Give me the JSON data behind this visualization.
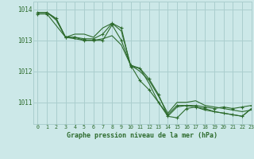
{
  "title": "Graphe pression niveau de la mer (hPa)",
  "background_color": "#cce8e8",
  "grid_color": "#aacece",
  "line_color": "#2d6b2d",
  "xlim": [
    -0.5,
    23
  ],
  "ylim": [
    1010.3,
    1014.25
  ],
  "yticks": [
    1011,
    1012,
    1013,
    1014
  ],
  "xticks": [
    0,
    1,
    2,
    3,
    4,
    5,
    6,
    7,
    8,
    9,
    10,
    11,
    12,
    13,
    14,
    15,
    16,
    17,
    18,
    19,
    20,
    21,
    22,
    23
  ],
  "series": [
    {
      "x": [
        0,
        1,
        2,
        3,
        4,
        5,
        6,
        7,
        8,
        9,
        10,
        11,
        12,
        13,
        14,
        15,
        16,
        17,
        18,
        19,
        20,
        21,
        22,
        23
      ],
      "y": [
        1013.9,
        1013.9,
        1013.65,
        1013.1,
        1013.05,
        1013.0,
        1013.0,
        1013.05,
        1013.15,
        1012.85,
        1012.2,
        1012.1,
        1011.6,
        1011.0,
        1010.55,
        1010.85,
        1010.9,
        1010.85,
        1010.75,
        1010.7,
        1010.65,
        1010.6,
        1010.55,
        1010.8
      ],
      "marker": false
    },
    {
      "x": [
        0,
        1,
        2,
        3,
        4,
        5,
        6,
        7,
        8,
        9,
        10,
        11,
        12,
        13,
        14,
        15,
        16,
        17,
        18,
        19,
        20,
        21,
        22,
        23
      ],
      "y": [
        1013.9,
        1013.9,
        1013.7,
        1013.1,
        1013.2,
        1013.2,
        1013.1,
        1013.4,
        1013.55,
        1013.3,
        1012.2,
        1012.0,
        1011.7,
        1011.2,
        1010.65,
        1011.0,
        1011.0,
        1011.05,
        1010.9,
        1010.85,
        1010.8,
        1010.75,
        1010.7,
        1010.75
      ],
      "marker": false
    },
    {
      "x": [
        0,
        1,
        2,
        3,
        4,
        5,
        6,
        7,
        8,
        9,
        10,
        11,
        12,
        13,
        14,
        15,
        16,
        17,
        18,
        19,
        20,
        21,
        22,
        23
      ],
      "y": [
        1013.9,
        1013.9,
        1013.7,
        1013.1,
        1013.1,
        1013.0,
        1013.0,
        1013.0,
        1013.5,
        1013.0,
        1012.2,
        1011.7,
        1011.4,
        1011.0,
        1010.6,
        1010.9,
        1010.9,
        1010.9,
        1010.85,
        1010.8,
        1010.85,
        1010.8,
        1010.85,
        1010.9
      ],
      "marker": true
    },
    {
      "x": [
        0,
        1,
        3,
        4,
        5,
        6,
        7,
        8,
        9,
        10,
        11,
        12,
        13,
        14,
        15,
        16,
        17,
        18,
        19,
        20,
        21,
        22,
        23
      ],
      "y": [
        1013.85,
        1013.85,
        1013.1,
        1013.1,
        1013.05,
        1013.05,
        1013.2,
        1013.55,
        1013.4,
        1012.15,
        1012.1,
        1011.75,
        1011.25,
        1010.55,
        1010.5,
        1010.8,
        1010.85,
        1010.8,
        1010.7,
        1010.65,
        1010.6,
        1010.55,
        1010.8
      ],
      "marker": true
    }
  ]
}
